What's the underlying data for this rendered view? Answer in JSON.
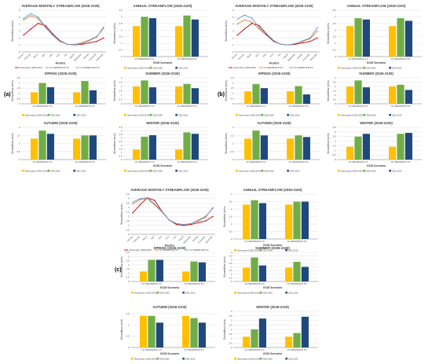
{
  "groups": [
    {
      "label": "(a)",
      "panel_start": 0
    },
    {
      "label": "(b)",
      "panel_start": 6
    },
    {
      "label": "(c)",
      "panel_start": 12
    }
  ],
  "colors": {
    "obs": "#ffc000",
    "mid": "#70ad47",
    "far": "#1f497d",
    "line_obs": "#c00000",
    "line_s1": "#ed7d31",
    "line_s2": "#5b9bd5",
    "grid": "#d9d9d9",
    "axis": "#808080",
    "text": "#404040"
  },
  "chart_data": [
    {
      "type": "line",
      "title": "AVERAGE MONTHLY STREAMFLOW (2026-2100)",
      "xlabel": "Months",
      "ylabel": "Streamflow (m³/s)",
      "categories": [
        "January",
        "February",
        "March",
        "April",
        "May",
        "June",
        "July",
        "August",
        "September",
        "October",
        "November",
        "December"
      ],
      "series": [
        {
          "name": "Observation (1956-2019)",
          "values": [
            2.4,
            3.3,
            4.1,
            3.8,
            2.6,
            1.6,
            1.1,
            1.0,
            1.1,
            1.3,
            1.5,
            2.0
          ]
        },
        {
          "name": "CC-SMSPB RCP 4.5",
          "values": [
            4.6,
            5.2,
            4.8,
            3.5,
            2.4,
            1.5,
            1.1,
            1.1,
            1.3,
            1.7,
            2.2,
            3.4
          ]
        },
        {
          "name": "CC-SMSPB RCP 8.5",
          "values": [
            4.8,
            5.5,
            5.0,
            3.6,
            2.4,
            1.5,
            1.1,
            1.0,
            1.2,
            1.6,
            2.1,
            3.6
          ]
        }
      ],
      "ylim": [
        0,
        6
      ]
    },
    {
      "type": "bar",
      "title": "ANNUAL STREAMFLOW (2026-2100)",
      "xlabel": "GCM Scenario",
      "ylabel": "Streamflow (m³/s)",
      "categories": [
        "CC-SMSPB RCP 4.5",
        "CC-SMSPB RCP 8.5"
      ],
      "series": [
        {
          "name": "Observation (1956-2019)",
          "values": [
            2.3,
            2.3
          ]
        },
        {
          "name": "2026-2060",
          "values": [
            3.0,
            3.1
          ]
        },
        {
          "name": "2061-2100",
          "values": [
            2.9,
            2.8
          ]
        }
      ],
      "ylim": [
        0,
        3.5
      ]
    },
    {
      "type": "bar",
      "title": "SPRING (2026-2100)",
      "xlabel": "",
      "ylabel": "Streamflow (m³/s)",
      "categories": [
        "CC-SMSPB RCP 4.5",
        "CC-SMSPB RCP 8.5"
      ],
      "series": [
        {
          "name": "Observation (1956-2019)",
          "values": [
            1.1,
            1.1
          ]
        },
        {
          "name": "2026-2060",
          "values": [
            2.0,
            2.2
          ]
        },
        {
          "name": "2061-2100",
          "values": [
            1.6,
            1.3
          ]
        }
      ],
      "ylim": [
        0,
        2.5
      ]
    },
    {
      "type": "bar",
      "title": "SUMMER (2026-2100)",
      "xlabel": "",
      "ylabel": "Streamflow (m³/s)",
      "categories": [
        "CC-SMSPB RCP 4.5",
        "CC-SMSPB RCP 8.5"
      ],
      "series": [
        {
          "name": "Observation (1956-2019)",
          "values": [
            2.0,
            2.0
          ]
        },
        {
          "name": "2026-2060",
          "values": [
            2.7,
            2.3
          ]
        },
        {
          "name": "2061-2100",
          "values": [
            1.9,
            1.8
          ]
        }
      ],
      "ylim": [
        0,
        3
      ]
    },
    {
      "type": "bar",
      "title": "AUTUMN (2026-2100)",
      "xlabel": "",
      "ylabel": "Streamflow (m³/s)",
      "categories": [
        "CC-SMSPB RCP 4.5",
        "CC-SMSPB RCP 8.5"
      ],
      "series": [
        {
          "name": "Observation (1956-2019)",
          "values": [
            1.3,
            1.3
          ]
        },
        {
          "name": "2026-2060",
          "values": [
            1.8,
            1.5
          ]
        },
        {
          "name": "2061-2100",
          "values": [
            1.6,
            1.5
          ]
        }
      ],
      "ylim": [
        0,
        2
      ]
    },
    {
      "type": "bar",
      "title": "WINTER (2026-2100)",
      "xlabel": "GCM Scenario",
      "ylabel": "Streamflow (m³/s)",
      "categories": [
        "CC-SMSPB RCP 4.5",
        "CC-SMSPB RCP 8.5"
      ],
      "series": [
        {
          "name": "Observation (1956-2019)",
          "values": [
            1.4,
            1.4
          ]
        },
        {
          "name": "2026-2060",
          "values": [
            3.2,
            3.8
          ]
        },
        {
          "name": "2061-2100",
          "values": [
            3.4,
            3.6
          ]
        }
      ],
      "ylim": [
        0,
        4.5
      ]
    },
    {
      "type": "line",
      "title": "AVERAGE MONTHLY STREAMFLOW (2026-2100)",
      "xlabel": "Months",
      "ylabel": "Streamflow (m³/s)",
      "categories": [
        "January",
        "February",
        "March",
        "April",
        "May",
        "June",
        "July",
        "August",
        "September",
        "October",
        "November",
        "December"
      ],
      "series": [
        {
          "name": "Observation (1956-2019)",
          "values": [
            2.4,
            3.3,
            4.1,
            3.8,
            2.6,
            1.6,
            1.1,
            1.0,
            1.1,
            1.3,
            1.5,
            2.0
          ]
        },
        {
          "name": "CC-SMSPB RCP 4.5",
          "values": [
            4.0,
            4.6,
            4.3,
            3.3,
            2.4,
            1.5,
            1.1,
            1.0,
            1.2,
            1.5,
            1.9,
            3.0
          ]
        },
        {
          "name": "CC-SMSPB RCP 8.5",
          "values": [
            4.7,
            5.3,
            4.9,
            3.5,
            2.4,
            1.5,
            1.1,
            1.0,
            1.2,
            1.6,
            2.0,
            3.5
          ]
        }
      ],
      "ylim": [
        0,
        6
      ]
    },
    {
      "type": "bar",
      "title": "ANNUAL STREAMFLOW (2026-2100)",
      "xlabel": "GCM Scenario",
      "ylabel": "Streamflow (m³/s)",
      "categories": [
        "CC-SMSPB RCP 4.5",
        "CC-SMSPB RCP 8.5"
      ],
      "series": [
        {
          "name": "Observation (1956-2019)",
          "values": [
            2.3,
            2.3
          ]
        },
        {
          "name": "2026-2060",
          "values": [
            2.9,
            2.9
          ]
        },
        {
          "name": "2061-2100",
          "values": [
            2.8,
            2.7
          ]
        }
      ],
      "ylim": [
        0,
        3.5
      ]
    },
    {
      "type": "bar",
      "title": "SPRING (2026-2100)",
      "xlabel": "",
      "ylabel": "Streamflow (m³/s)",
      "categories": [
        "CC-SMSPB RCP 4.5",
        "CC-SMSPB RCP 8.5"
      ],
      "series": [
        {
          "name": "Observation (1956-2019)",
          "values": [
            1.2,
            1.2
          ]
        },
        {
          "name": "2026-2060",
          "values": [
            1.9,
            1.7
          ]
        },
        {
          "name": "2061-2100",
          "values": [
            1.5,
            0.9
          ]
        }
      ],
      "ylim": [
        0,
        2.5
      ]
    },
    {
      "type": "bar",
      "title": "SUMMER (2026-2100)",
      "xlabel": "",
      "ylabel": "Streamflow (m³/s)",
      "categories": [
        "CC-SMSPB RCP 4.5",
        "CC-SMSPB RCP 8.5"
      ],
      "series": [
        {
          "name": "Observation (1956-2019)",
          "values": [
            2.0,
            2.0
          ]
        },
        {
          "name": "2026-2060",
          "values": [
            2.7,
            2.2
          ]
        },
        {
          "name": "2061-2100",
          "values": [
            1.9,
            1.6
          ]
        }
      ],
      "ylim": [
        0,
        3
      ]
    },
    {
      "type": "bar",
      "title": "AUTUMN (2026-2100)",
      "xlabel": "",
      "ylabel": "Streamflow (m³/s)",
      "categories": [
        "CC-SMSPB RCP 4.5",
        "CC-SMSPB RCP 8.5"
      ],
      "series": [
        {
          "name": "Observation (1956-2019)",
          "values": [
            1.3,
            1.3
          ]
        },
        {
          "name": "2026-2060",
          "values": [
            1.8,
            1.5
          ]
        },
        {
          "name": "2061-2100",
          "values": [
            1.5,
            1.4
          ]
        }
      ],
      "ylim": [
        0,
        2
      ]
    },
    {
      "type": "bar",
      "title": "WINTER (2026-2100)",
      "xlabel": "GCM Scenario",
      "ylabel": "Streamflow (m³/s)",
      "categories": [
        "CC-SMSPB RCP 4.5",
        "CC-SMSPB RCP 8.5"
      ],
      "series": [
        {
          "name": "Observation (1956-2019)",
          "values": [
            1.4,
            1.4
          ]
        },
        {
          "name": "2026-2060",
          "values": [
            2.5,
            2.8
          ]
        },
        {
          "name": "2061-2100",
          "values": [
            2.8,
            2.9
          ]
        }
      ],
      "ylim": [
        0,
        3.5
      ]
    },
    {
      "type": "line",
      "title": "AVERAGE MONTHLY STREAMFLOW (2026-2100)",
      "xlabel": "Months",
      "ylabel": "Streamflow (m³/s)",
      "categories": [
        "January",
        "February",
        "March",
        "April",
        "May",
        "June",
        "July",
        "August",
        "September",
        "October",
        "November",
        "December"
      ],
      "series": [
        {
          "name": "Observation (1956-2019)",
          "values": [
            2.4,
            3.3,
            4.1,
            3.8,
            2.6,
            1.6,
            1.1,
            1.0,
            1.1,
            1.3,
            1.5,
            2.0
          ]
        },
        {
          "name": "CC-SMSPB RCP 4.5",
          "values": [
            3.4,
            3.9,
            4.0,
            3.3,
            2.5,
            1.6,
            1.2,
            1.1,
            1.2,
            1.6,
            2.0,
            2.9
          ]
        },
        {
          "name": "CC-SMSPB RCP 8.5",
          "values": [
            3.6,
            4.0,
            4.1,
            3.4,
            2.6,
            1.6,
            1.2,
            1.1,
            1.2,
            1.5,
            1.9,
            3.0
          ]
        }
      ],
      "ylim": [
        0,
        4.5
      ]
    },
    {
      "type": "bar",
      "title": "ANNUAL STREAMFLOW (2026-2100)",
      "xlabel": "GCM Scenario",
      "ylabel": "Streamflow (m³/s)",
      "categories": [
        "CC-SMSPB RCP 4.5",
        "CC-SMSPB RCP 8.5"
      ],
      "series": [
        {
          "name": "Observation (1956-2019)",
          "values": [
            2.3,
            2.3
          ]
        },
        {
          "name": "2026-2060",
          "values": [
            2.6,
            2.5
          ]
        },
        {
          "name": "2061-2100",
          "values": [
            2.4,
            2.5
          ]
        }
      ],
      "ylim": [
        0,
        3
      ]
    },
    {
      "type": "bar",
      "title": "SPRING (2026-2100)",
      "xlabel": "GCM Scenario",
      "ylabel": "Streamflow (m³/s)",
      "categories": [
        "CC-SMSPB RCP 4.5",
        "CC-SMSPB RCP 8.5"
      ],
      "series": [
        {
          "name": "Observation (1956-2019)",
          "values": [
            1.2,
            1.2
          ]
        },
        {
          "name": "2026-2060",
          "values": [
            2.6,
            2.4
          ]
        },
        {
          "name": "2061-2100",
          "values": [
            2.6,
            2.3
          ]
        }
      ],
      "ylim": [
        0,
        3.5
      ]
    },
    {
      "type": "bar",
      "title": "SUMMER (2026-2100)",
      "xlabel": "GCM Scenario",
      "ylabel": "Streamflow (m³/s)",
      "categories": [
        "CC-SMSPB RCP 4.5",
        "CC-SMSPB RCP 8.5"
      ],
      "series": [
        {
          "name": "Observation (1956-2019)",
          "values": [
            1.9,
            1.9
          ]
        },
        {
          "name": "2026-2060",
          "values": [
            3.3,
            2.7
          ]
        },
        {
          "name": "2061-2100",
          "values": [
            2.2,
            2.0
          ]
        }
      ],
      "ylim": [
        0,
        4
      ]
    },
    {
      "type": "bar",
      "title": "AUTUMN (2026-2100)",
      "xlabel": "GCM Scenario",
      "ylabel": "Streamflow (m³/s)",
      "categories": [
        "CC-SMSPB RCP 4.5",
        "CC-SMSPB RCP 8.5"
      ],
      "series": [
        {
          "name": "Observation (1956-2019)",
          "values": [
            1.4,
            1.4
          ]
        },
        {
          "name": "2026-2060",
          "values": [
            1.4,
            1.3
          ]
        },
        {
          "name": "2061-2100",
          "values": [
            1.1,
            1.1
          ]
        }
      ],
      "ylim": [
        0,
        1.6
      ]
    },
    {
      "type": "bar",
      "title": "WINTER (2026-2100)",
      "xlabel": "GCM Scenario",
      "ylabel": "Streamflow (m³/s)",
      "categories": [
        "CC-SMSPB RCP 4.5",
        "CC-SMSPB RCP 8.5"
      ],
      "series": [
        {
          "name": "Observation (1956-2019)",
          "values": [
            1.2,
            1.2
          ]
        },
        {
          "name": "2026-2060",
          "values": [
            2.0,
            1.6
          ]
        },
        {
          "name": "2061-2100",
          "values": [
            3.2,
            3.4
          ]
        }
      ],
      "ylim": [
        0,
        4
      ]
    }
  ]
}
